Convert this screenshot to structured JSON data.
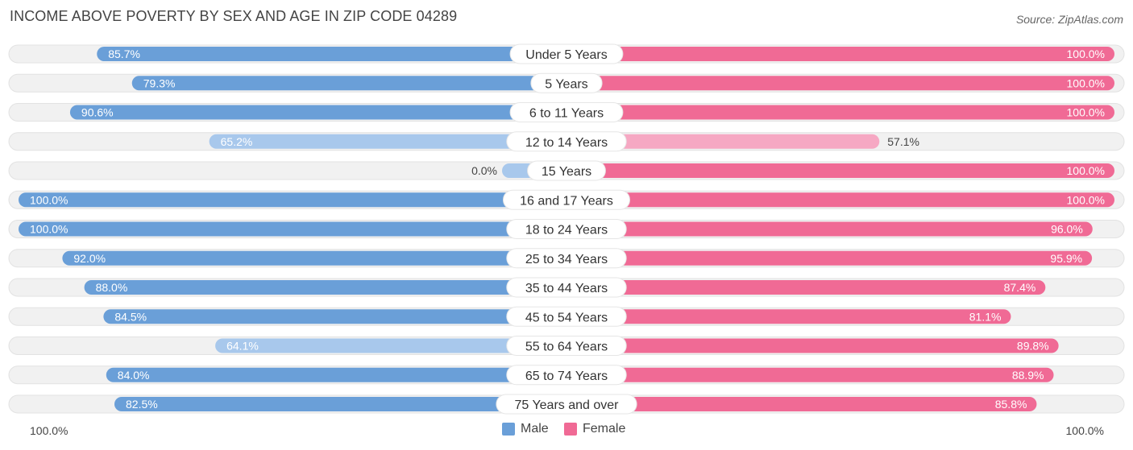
{
  "header": {
    "title": "INCOME ABOVE POVERTY BY SEX AND AGE IN ZIP CODE 04289",
    "source": "Source: ZipAtlas.com"
  },
  "colors": {
    "male": "#6a9fd8",
    "male_light": "#a8c8ec",
    "female": "#f06a95",
    "female_light": "#f6a8c3",
    "track": "#f1f1f1"
  },
  "legend": {
    "male_label": "Male",
    "female_label": "Female"
  },
  "axis": {
    "left_label": "100.0%",
    "right_label": "100.0%"
  },
  "chart_data": {
    "type": "bar",
    "orientation": "horizontal-diverging",
    "title": "INCOME ABOVE POVERTY BY SEX AND AGE IN ZIP CODE 04289",
    "xlim": [
      -100,
      100
    ],
    "categories": [
      "Under 5 Years",
      "5 Years",
      "6 to 11 Years",
      "12 to 14 Years",
      "15 Years",
      "16 and 17 Years",
      "18 to 24 Years",
      "25 to 34 Years",
      "35 to 44 Years",
      "45 to 54 Years",
      "55 to 64 Years",
      "65 to 74 Years",
      "75 Years and over"
    ],
    "series": [
      {
        "name": "Male",
        "values": [
          85.7,
          79.3,
          90.6,
          65.2,
          0.0,
          100.0,
          100.0,
          92.0,
          88.0,
          84.5,
          64.1,
          84.0,
          82.5
        ],
        "labels": [
          "85.7%",
          "79.3%",
          "90.6%",
          "65.2%",
          "0.0%",
          "100.0%",
          "100.0%",
          "92.0%",
          "88.0%",
          "84.5%",
          "64.1%",
          "84.0%",
          "82.5%"
        ]
      },
      {
        "name": "Female",
        "values": [
          100.0,
          100.0,
          100.0,
          57.1,
          100.0,
          100.0,
          96.0,
          95.9,
          87.4,
          81.1,
          89.8,
          88.9,
          85.8
        ],
        "labels": [
          "100.0%",
          "100.0%",
          "100.0%",
          "57.1%",
          "100.0%",
          "100.0%",
          "96.0%",
          "95.9%",
          "87.4%",
          "81.1%",
          "89.8%",
          "88.9%",
          "85.8%"
        ]
      }
    ],
    "legend_position": "bottom-center"
  }
}
